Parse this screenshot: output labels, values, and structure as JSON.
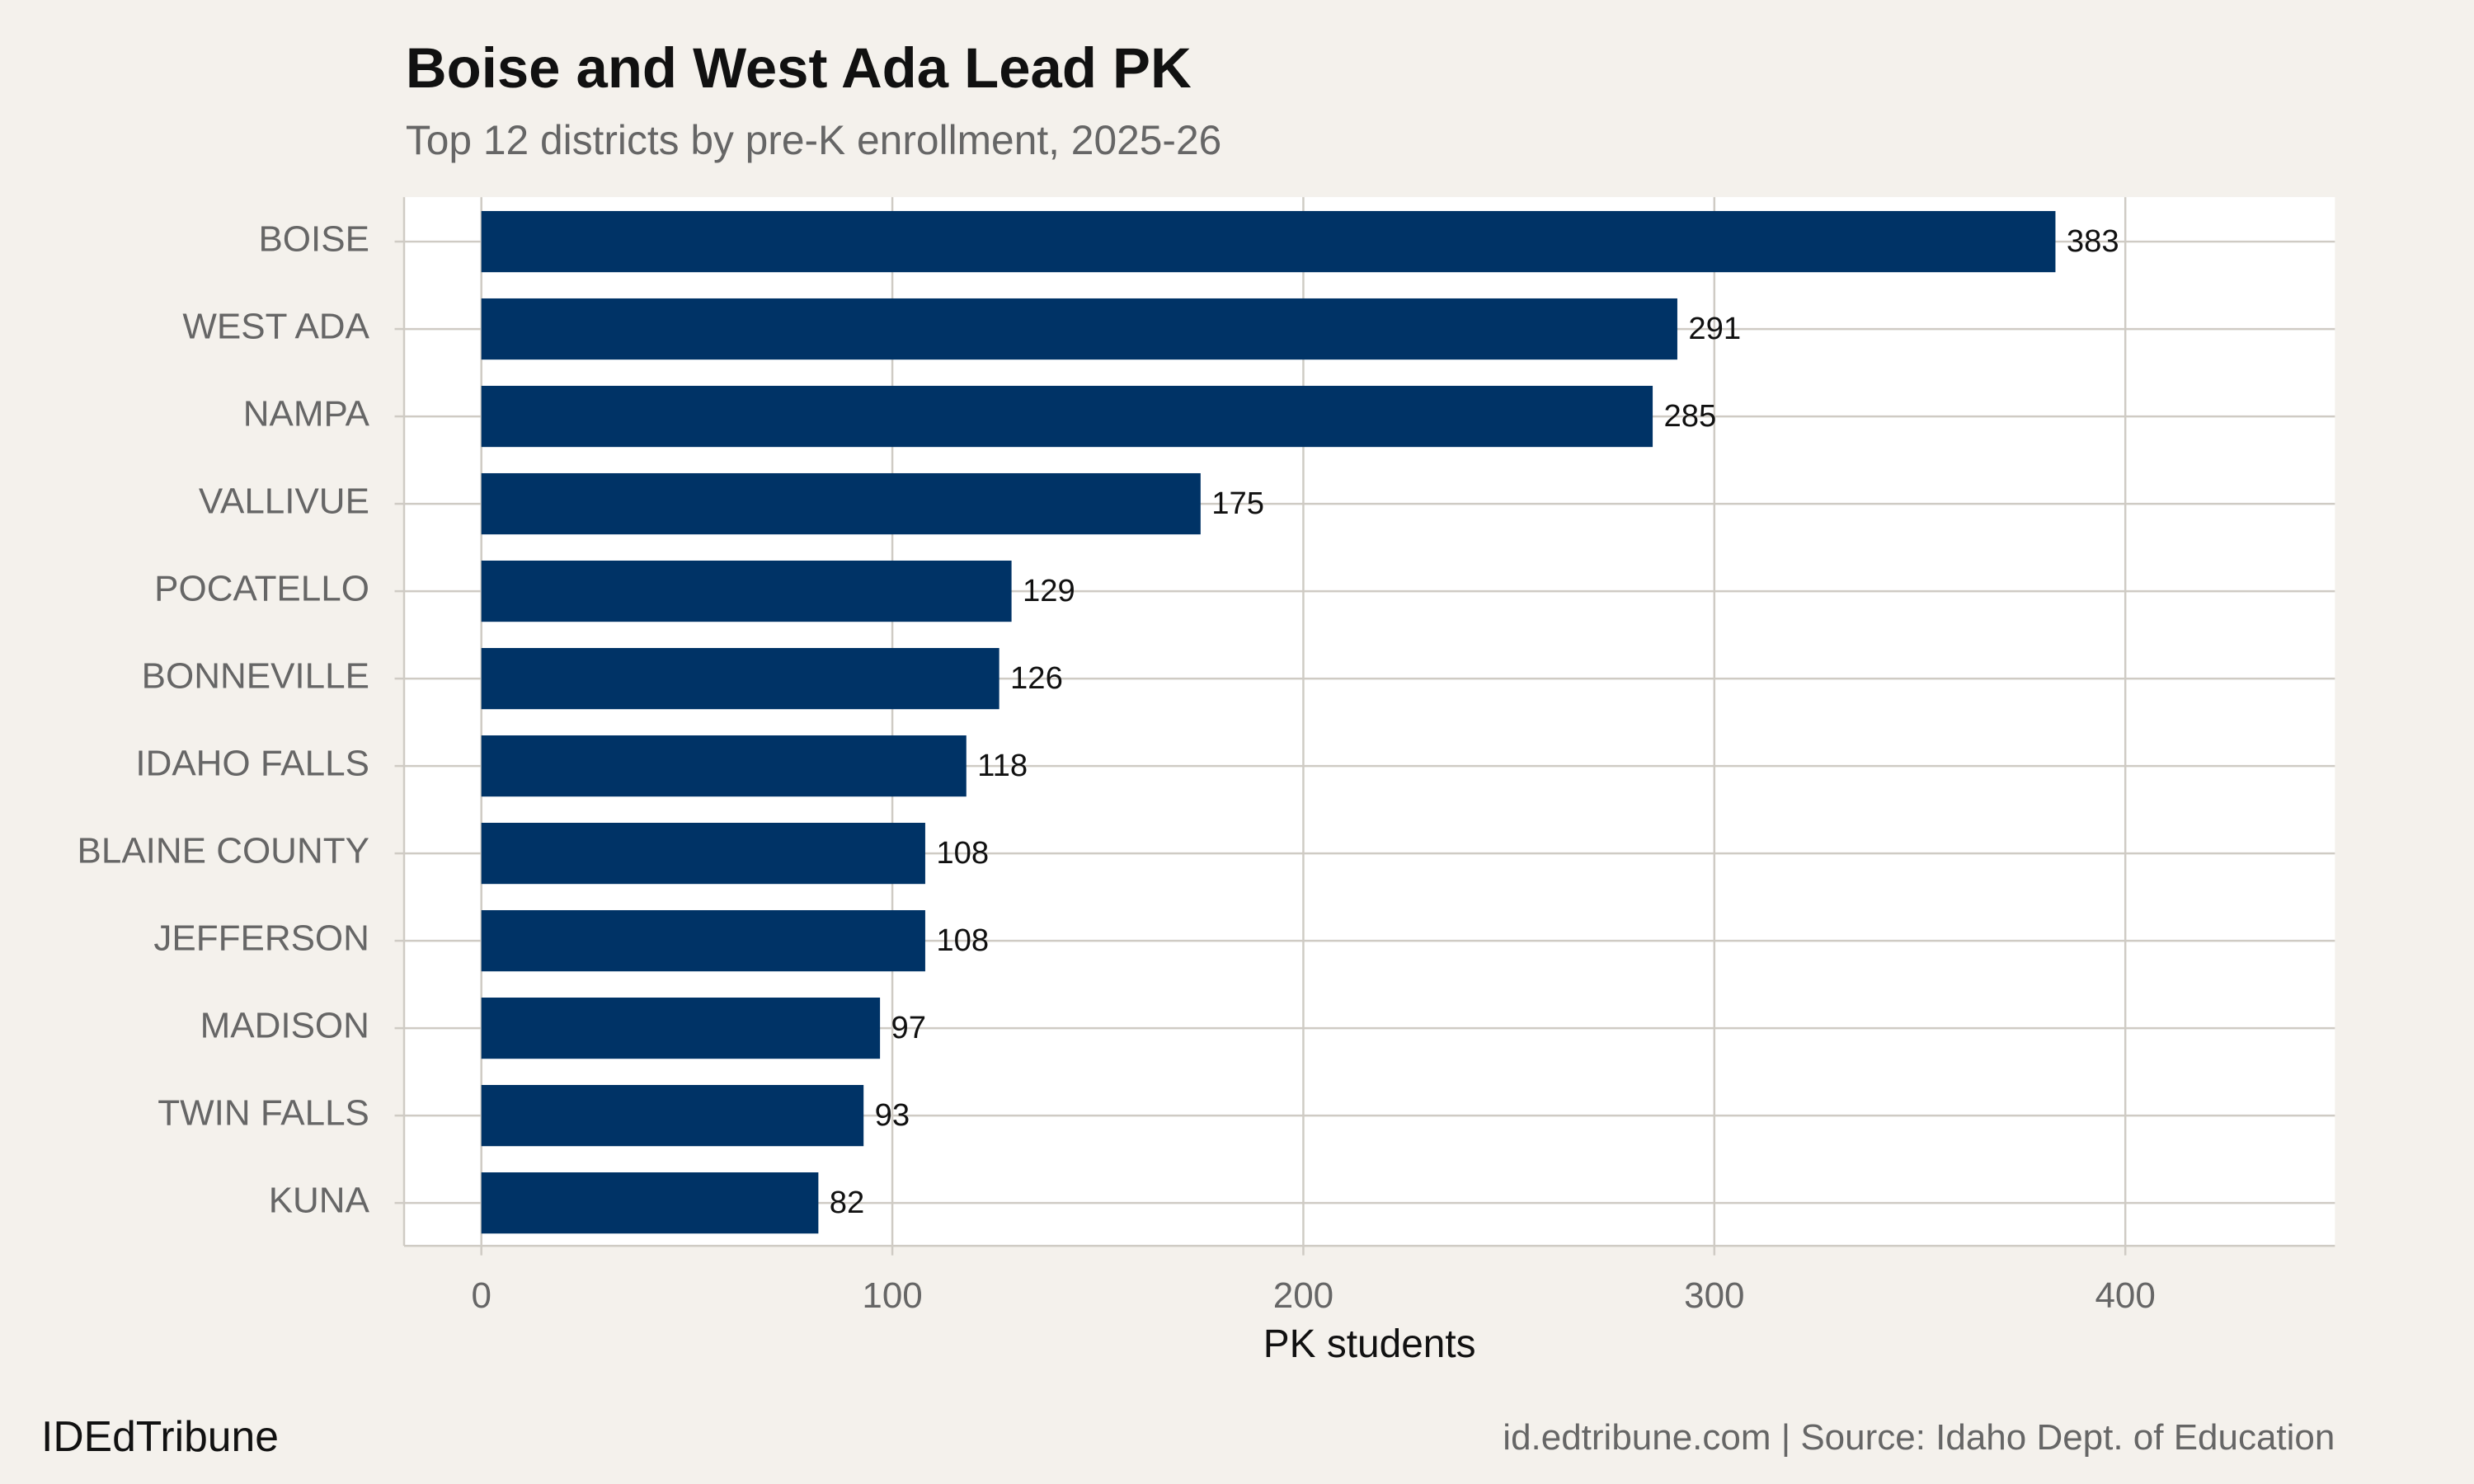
{
  "chart_data": {
    "type": "bar",
    "orientation": "horizontal",
    "title": "Boise and West Ada Lead PK",
    "subtitle": "Top 12 districts by pre-K enrollment, 2025-26",
    "x_label": "PK students",
    "categories": [
      "BOISE",
      "WEST ADA",
      "NAMPA",
      "VALLIVUE",
      "POCATELLO",
      "BONNEVILLE",
      "IDAHO FALLS",
      "BLAINE COUNTY",
      "JEFFERSON",
      "MADISON",
      "TWIN FALLS",
      "KUNA"
    ],
    "values": [
      383,
      291,
      285,
      175,
      129,
      126,
      118,
      108,
      108,
      97,
      93,
      82
    ],
    "color": "#003366",
    "xlim": [
      -18.8,
      451
    ],
    "xticks": [
      0,
      100,
      200,
      300,
      400
    ],
    "grid": true,
    "brand": "IDEdTribune",
    "source": "id.edtribune.com | Source: Idaho Dept. of Education"
  }
}
